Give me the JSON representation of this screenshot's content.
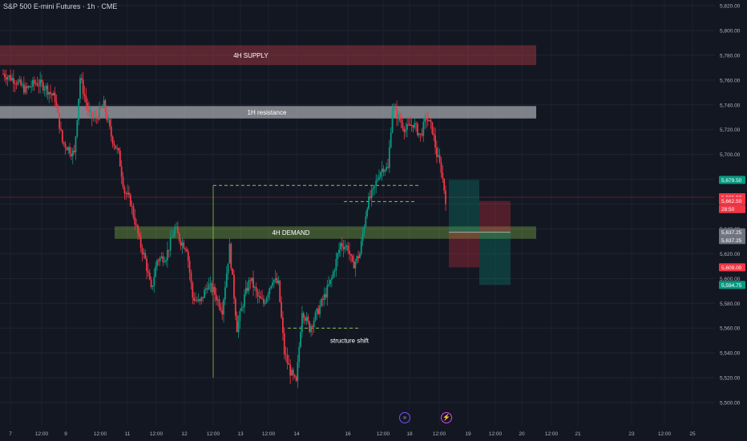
{
  "header": {
    "title": "S&P 500 E-mini Futures · 1h · CME"
  },
  "icons": {
    "replay": "replay-icon",
    "flash": "lightning-icon"
  },
  "chart_data": {
    "type": "candlestick",
    "title": "S&P 500 E-mini Futures · 1h · CME",
    "ylim": [
      5490,
      5825
    ],
    "y_ticks": [
      5500,
      5520,
      5540,
      5560,
      5580,
      5600,
      5620,
      5640,
      5660,
      5680,
      5700,
      5720,
      5740,
      5760,
      5780,
      5800,
      5820
    ],
    "y_tick_labels": [
      "5,500.00",
      "5,520.00",
      "5,540.00",
      "5,560.00",
      "5,580.00",
      "5,600.00",
      "5,620.00",
      "5,640.00",
      "5,660.00",
      "5,680.00",
      "5,700.00",
      "5,720.00",
      "5,740.00",
      "5,760.00",
      "5,780.00",
      "5,800.00",
      "5,820.00"
    ],
    "x_ticks": [
      "7",
      "12:00",
      "9",
      "12:00",
      "11",
      "12:00",
      "12",
      "12:00",
      "13",
      "12:00",
      "14",
      "16",
      "12:00",
      "18",
      "12:00",
      "19",
      "12:00",
      "20",
      "12:00",
      "21",
      "23",
      "12:00",
      "25"
    ],
    "grid": true,
    "zones": [
      {
        "label": "4H SUPPLY",
        "low": 5772,
        "high": 5788,
        "color": "#b23c44"
      },
      {
        "label": "1H resistance",
        "low": 5729,
        "high": 5739,
        "color": "#d8d8dc"
      },
      {
        "label": "4H DEMAND",
        "low": 5632,
        "high": 5642,
        "color": "#8bc34a"
      }
    ],
    "dashed_levels": [
      {
        "price": 5675
      },
      {
        "price": 5662
      },
      {
        "price": 5560
      }
    ],
    "annotations": [
      {
        "text": "structure shift",
        "price": 5550
      }
    ],
    "current_price_line": 5665.5,
    "positions": [
      {
        "type": "long",
        "entry": 5637.25,
        "target": 5679.5,
        "stop": 5609.0
      },
      {
        "type": "short",
        "entry": 5637.25,
        "target": 5594.75,
        "stop": 5662.5
      }
    ],
    "price_tags": [
      {
        "label": "5,679.50",
        "price": 5679.5,
        "color": "#089981"
      },
      {
        "label": "5,665.50",
        "price": 5665.5,
        "color": "#f23645"
      },
      {
        "label": "5,662.50",
        "price": 5662.5,
        "color": "#f23645"
      },
      {
        "label": "28:50",
        "price": 5656.0,
        "color": "#f23645"
      },
      {
        "label": "5,637.25",
        "price": 5637.25,
        "color": "#6f7480"
      },
      {
        "label": "5,637.25",
        "price": 5631.0,
        "color": "#6f7480"
      },
      {
        "label": "5,609.00",
        "price": 5609.0,
        "color": "#f23645"
      },
      {
        "label": "5,594.75",
        "price": 5594.75,
        "color": "#089981"
      }
    ],
    "path_keypoints": [
      [
        0,
        5765
      ],
      [
        8,
        5760
      ],
      [
        15,
        5752
      ],
      [
        22,
        5758
      ],
      [
        28,
        5755
      ],
      [
        35,
        5745
      ],
      [
        40,
        5710
      ],
      [
        44,
        5705
      ],
      [
        48,
        5700
      ],
      [
        52,
        5762
      ],
      [
        58,
        5732
      ],
      [
        62,
        5728
      ],
      [
        68,
        5740
      ],
      [
        73,
        5715
      ],
      [
        78,
        5700
      ],
      [
        82,
        5670
      ],
      [
        86,
        5662
      ],
      [
        92,
        5630
      ],
      [
        96,
        5615
      ],
      [
        100,
        5590
      ],
      [
        104,
        5615
      ],
      [
        110,
        5618
      ],
      [
        116,
        5640
      ],
      [
        120,
        5630
      ],
      [
        124,
        5625
      ],
      [
        128,
        5585
      ],
      [
        133,
        5580
      ],
      [
        138,
        5595
      ],
      [
        142,
        5590
      ],
      [
        148,
        5575
      ],
      [
        153,
        5625
      ],
      [
        158,
        5560
      ],
      [
        163,
        5585
      ],
      [
        167,
        5600
      ],
      [
        172,
        5585
      ],
      [
        176,
        5580
      ],
      [
        182,
        5600
      ],
      [
        186,
        5595
      ],
      [
        190,
        5540
      ],
      [
        194,
        5525
      ],
      [
        198,
        5515
      ],
      [
        202,
        5575
      ],
      [
        207,
        5560
      ],
      [
        212,
        5572
      ],
      [
        218,
        5588
      ],
      [
        222,
        5600
      ],
      [
        228,
        5628
      ],
      [
        233,
        5625
      ],
      [
        236,
        5610
      ],
      [
        241,
        5620
      ],
      [
        246,
        5660
      ],
      [
        250,
        5670
      ],
      [
        254,
        5685
      ],
      [
        257,
        5690
      ],
      [
        260,
        5688
      ],
      [
        263,
        5738
      ],
      [
        267,
        5730
      ],
      [
        272,
        5720
      ],
      [
        277,
        5725
      ],
      [
        282,
        5715
      ],
      [
        286,
        5730
      ],
      [
        290,
        5720
      ],
      [
        293,
        5700
      ],
      [
        296,
        5688
      ],
      [
        299,
        5664
      ]
    ]
  }
}
